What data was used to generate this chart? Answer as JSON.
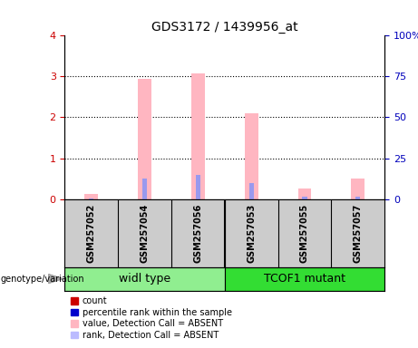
{
  "title": "GDS3172 / 1439956_at",
  "samples": [
    "GSM257052",
    "GSM257054",
    "GSM257056",
    "GSM257053",
    "GSM257055",
    "GSM257057"
  ],
  "groups": [
    {
      "label": "widl type",
      "color": "#90EE90",
      "indices": [
        0,
        1,
        2
      ]
    },
    {
      "label": "TCOF1 mutant",
      "color": "#33DD33",
      "indices": [
        3,
        4,
        5
      ]
    }
  ],
  "pink_values": [
    0.13,
    2.95,
    3.07,
    2.1,
    0.25,
    0.5
  ],
  "blue_values": [
    0.02,
    0.5,
    0.6,
    0.4,
    0.05,
    0.05
  ],
  "pink_color": "#FFB6C1",
  "blue_color": "#9999EE",
  "left_ylim": [
    0,
    4
  ],
  "right_ylim": [
    0,
    100
  ],
  "left_yticks": [
    0,
    1,
    2,
    3,
    4
  ],
  "right_yticks": [
    0,
    25,
    50,
    75,
    100
  ],
  "right_yticklabels": [
    "0",
    "25",
    "50",
    "75",
    "100%"
  ],
  "bar_width": 0.25,
  "legend_items": [
    {
      "color": "#CC0000",
      "label": "count"
    },
    {
      "color": "#0000CC",
      "label": "percentile rank within the sample"
    },
    {
      "color": "#FFB6C1",
      "label": "value, Detection Call = ABSENT"
    },
    {
      "color": "#BBBBFF",
      "label": "rank, Detection Call = ABSENT"
    }
  ],
  "plot_bg": "#FFFFFF",
  "sample_box_color": "#CCCCCC",
  "left_tick_color": "#CC0000",
  "right_tick_color": "#0000BB",
  "title_fontsize": 10,
  "tick_fontsize": 8,
  "sample_fontsize": 7,
  "group_fontsize": 9,
  "legend_fontsize": 7
}
